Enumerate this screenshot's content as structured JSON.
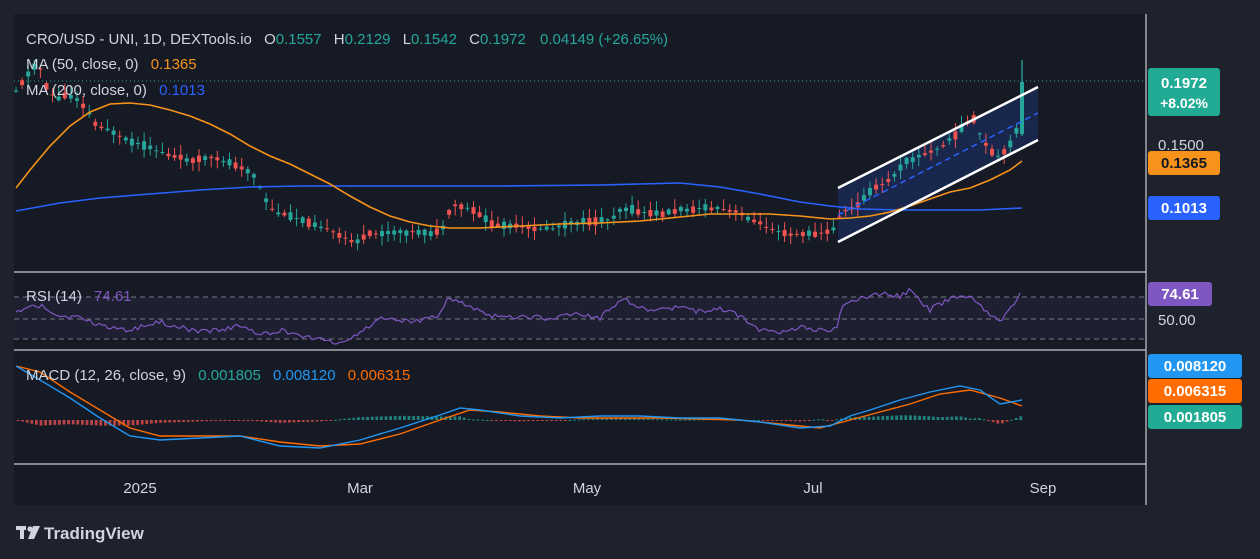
{
  "header": {
    "symbol": "CRO/USD - UNI, 1D, DEXTools.io",
    "o_label": "O",
    "o_value": "0.1557",
    "h_label": "H",
    "h_value": "0.2129",
    "l_label": "L",
    "l_value": "0.1542",
    "c_label": "C",
    "c_value": "0.1972",
    "change": "0.04149 (+26.65%)"
  },
  "ma50_legend": {
    "label": "MA (50, close, 0)",
    "value": "0.1365"
  },
  "ma200_legend": {
    "label": "MA (200, close, 0)",
    "value": "0.1013"
  },
  "rsi_legend": {
    "label": "RSI (14)",
    "value": "74.61"
  },
  "macd_legend": {
    "label": "MACD (12, 26, close, 9)",
    "v1": "0.001805",
    "v2": "0.008120",
    "v3": "0.006315"
  },
  "axis_badges": {
    "price": "0.1972",
    "price_change": "+8.02%",
    "tick_0150": "0.1500",
    "ma50": "0.1365",
    "ma200": "0.1013",
    "rsi": "74.61",
    "rsi_mid": "50.00",
    "macd1": "0.008120",
    "macd2": "0.006315",
    "macd3": "0.001805"
  },
  "time_axis": [
    "2025",
    "Mar",
    "May",
    "Jul",
    "Sep"
  ],
  "branding": {
    "logo_text": "TradingView"
  },
  "colors": {
    "background": "#1e222d",
    "up": "#26a69a",
    "down": "#ef5350",
    "ma50": "#f7931a",
    "ma200": "#2962ff",
    "rsi": "#7e57c2",
    "macd": "#2196f3",
    "signal": "#ff6d00",
    "channel": "#ffffff"
  },
  "chart_data": {
    "type": "candlestick",
    "title": "CRO/USD - UNI, 1D, DEXTools.io",
    "x": [
      "2024-12",
      "2025-01",
      "2025-02",
      "2025-03",
      "2025-04",
      "2025-05",
      "2025-06",
      "2025-07",
      "2025-08"
    ],
    "close": [
      0.18,
      0.13,
      0.11,
      0.085,
      0.09,
      0.093,
      0.09,
      0.115,
      0.1972
    ],
    "series": [
      {
        "name": "MA (50, close, 0)",
        "values": [
          0.14,
          0.162,
          0.14,
          0.105,
          0.09,
          0.092,
          0.093,
          0.092,
          0.1365
        ]
      },
      {
        "name": "MA (200, close, 0)",
        "values": [
          0.098,
          0.108,
          0.11,
          0.11,
          0.11,
          0.11,
          0.112,
          0.102,
          0.1013
        ]
      }
    ],
    "last": {
      "open": 0.1557,
      "high": 0.2129,
      "low": 0.1542,
      "close": 0.1972,
      "change": 0.04149,
      "change_pct": 26.65
    },
    "indicators": {
      "rsi": {
        "period": 14,
        "value": 74.61,
        "levels": [
          70,
          50,
          30
        ]
      },
      "macd": {
        "fast": 12,
        "slow": 26,
        "signal": 9,
        "histogram": 0.001805,
        "macd": 0.00812,
        "signal_value": 0.006315
      }
    },
    "annotations": [
      "ascending channel Jul–Aug 2025"
    ]
  }
}
